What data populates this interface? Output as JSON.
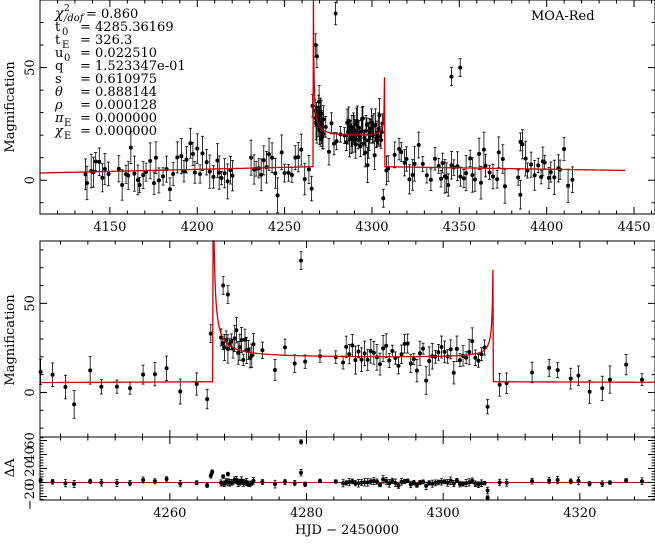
{
  "chart_data": [
    {
      "type": "scatter",
      "name": "full-light-curve",
      "title": "",
      "ylabel": "Magnification",
      "xlabel": "",
      "xlim": [
        4110,
        4462
      ],
      "ylim": [
        -15,
        80
      ],
      "xticks": [
        4150,
        4200,
        4250,
        4300,
        4350,
        4400,
        4450
      ],
      "yticks": [
        0,
        50
      ],
      "legend_label": "MOA-Red",
      "params": [
        {
          "label": "χ²/dof",
          "value": "= 0.860"
        },
        {
          "label": "t0",
          "value": "= 4285.36169"
        },
        {
          "label": "tE",
          "value": "= 326.3"
        },
        {
          "label": "u0",
          "value": "= 0.022510"
        },
        {
          "label": "q",
          "value": "= 1.523347e-01"
        },
        {
          "label": "s",
          "value": "= 0.610975"
        },
        {
          "label": "θ",
          "value": "= 0.888144"
        },
        {
          "label": "ρ",
          "value": "= 0.000128"
        },
        {
          "label": "πE",
          "value": "= 0.000000"
        },
        {
          "label": "χE",
          "value": "= 0.000000"
        }
      ]
    },
    {
      "type": "scatter",
      "name": "zoom-light-curve",
      "title": "",
      "ylabel": "Magnification",
      "xlabel": "",
      "xlim": [
        4241,
        4331
      ],
      "ylim": [
        -25,
        85
      ],
      "xticks": [
        4260,
        4280,
        4300,
        4320
      ],
      "yticks": [
        0,
        50
      ]
    },
    {
      "type": "scatter",
      "name": "residuals",
      "title": "",
      "ylabel": "ΔA",
      "xlabel": "HJD − 2450000",
      "xlim": [
        4241,
        4331
      ],
      "ylim": [
        -25,
        65
      ],
      "xticks": [
        4260,
        4280,
        4300,
        4320
      ],
      "yticks": [
        -20,
        0,
        20,
        40,
        60
      ],
      "ytick_labels": [
        "−20",
        "0",
        "20",
        "40",
        "60"
      ]
    }
  ]
}
